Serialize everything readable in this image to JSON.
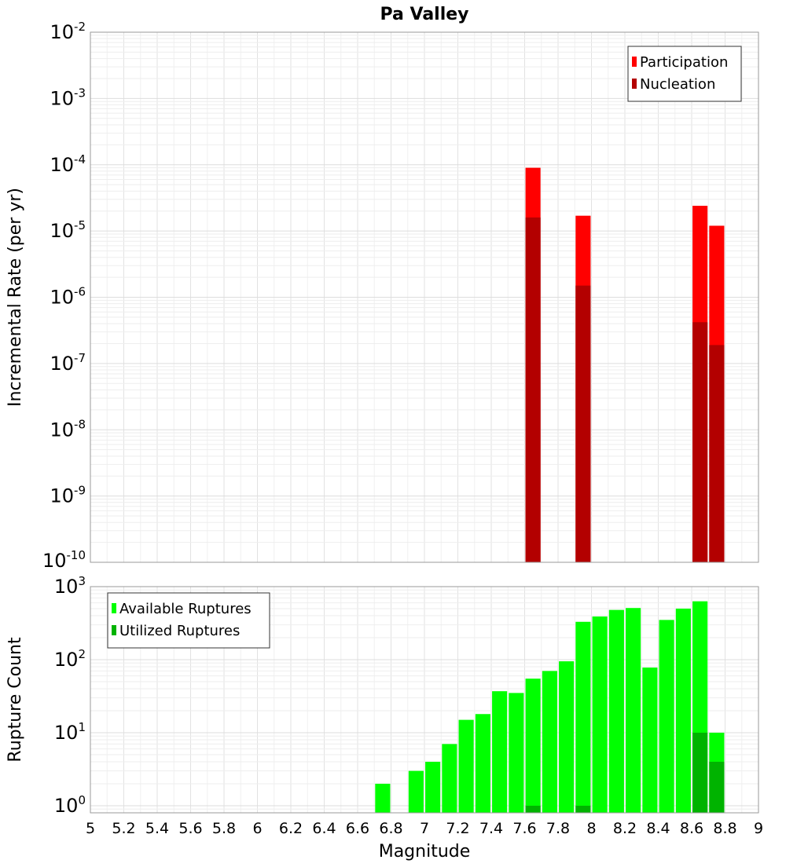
{
  "chart_data": [
    {
      "type": "bar",
      "title": "Pa Valley",
      "xlabel": "",
      "ylabel": "Incremental Rate (per yr)",
      "yscale": "log",
      "ylim": [
        1e-10,
        0.01
      ],
      "xlim": [
        5,
        9
      ],
      "grid": true,
      "legend": "top-right",
      "x_tick_labels": [],
      "y_tick_labels": [
        "10^-2",
        "10^-3",
        "10^-4",
        "10^-5",
        "10^-6",
        "10^-7",
        "10^-8",
        "10^-9",
        "10^-10"
      ],
      "bar_width": 0.09,
      "series": [
        {
          "name": "Participation",
          "color": "#ff0000",
          "x": [
            7.65,
            7.95,
            8.65,
            8.75
          ],
          "values": [
            9e-05,
            1.7e-05,
            2.4e-05,
            1.2e-05
          ]
        },
        {
          "name": "Nucleation",
          "color": "#b30000",
          "x": [
            7.65,
            7.95,
            8.65,
            8.75
          ],
          "values": [
            1.6e-05,
            1.5e-06,
            4.2e-07,
            1.9e-07
          ]
        }
      ]
    },
    {
      "type": "bar",
      "title": "",
      "xlabel": "Magnitude",
      "ylabel": "Rupture Count",
      "yscale": "log",
      "ylim": [
        0.8,
        1000
      ],
      "xlim": [
        5,
        9
      ],
      "grid": true,
      "legend": "top-left",
      "x_tick_labels": [
        "5",
        "5.2",
        "5.4",
        "5.6",
        "5.8",
        "6",
        "6.2",
        "6.4",
        "6.6",
        "6.8",
        "7",
        "7.2",
        "7.4",
        "7.6",
        "7.8",
        "8",
        "8.2",
        "8.4",
        "8.6",
        "8.8",
        "9"
      ],
      "y_tick_labels": [
        "10^3",
        "10^2",
        "10^1",
        "10^0"
      ],
      "bar_width": 0.09,
      "series": [
        {
          "name": "Available Ruptures",
          "color": "#00ff00",
          "x": [
            6.75,
            6.95,
            7.05,
            7.15,
            7.25,
            7.35,
            7.45,
            7.55,
            7.65,
            7.75,
            7.85,
            7.95,
            8.05,
            8.15,
            8.25,
            8.35,
            8.45,
            8.55,
            8.65,
            8.75
          ],
          "values": [
            2,
            3,
            4,
            7,
            15,
            18,
            37,
            35,
            55,
            70,
            95,
            330,
            390,
            480,
            510,
            78,
            350,
            500,
            630,
            10
          ]
        },
        {
          "name": "Utilized Ruptures",
          "color": "#00b300",
          "x": [
            7.65,
            7.95,
            8.65,
            8.75
          ],
          "values": [
            1,
            1,
            10,
            4
          ]
        }
      ]
    }
  ]
}
